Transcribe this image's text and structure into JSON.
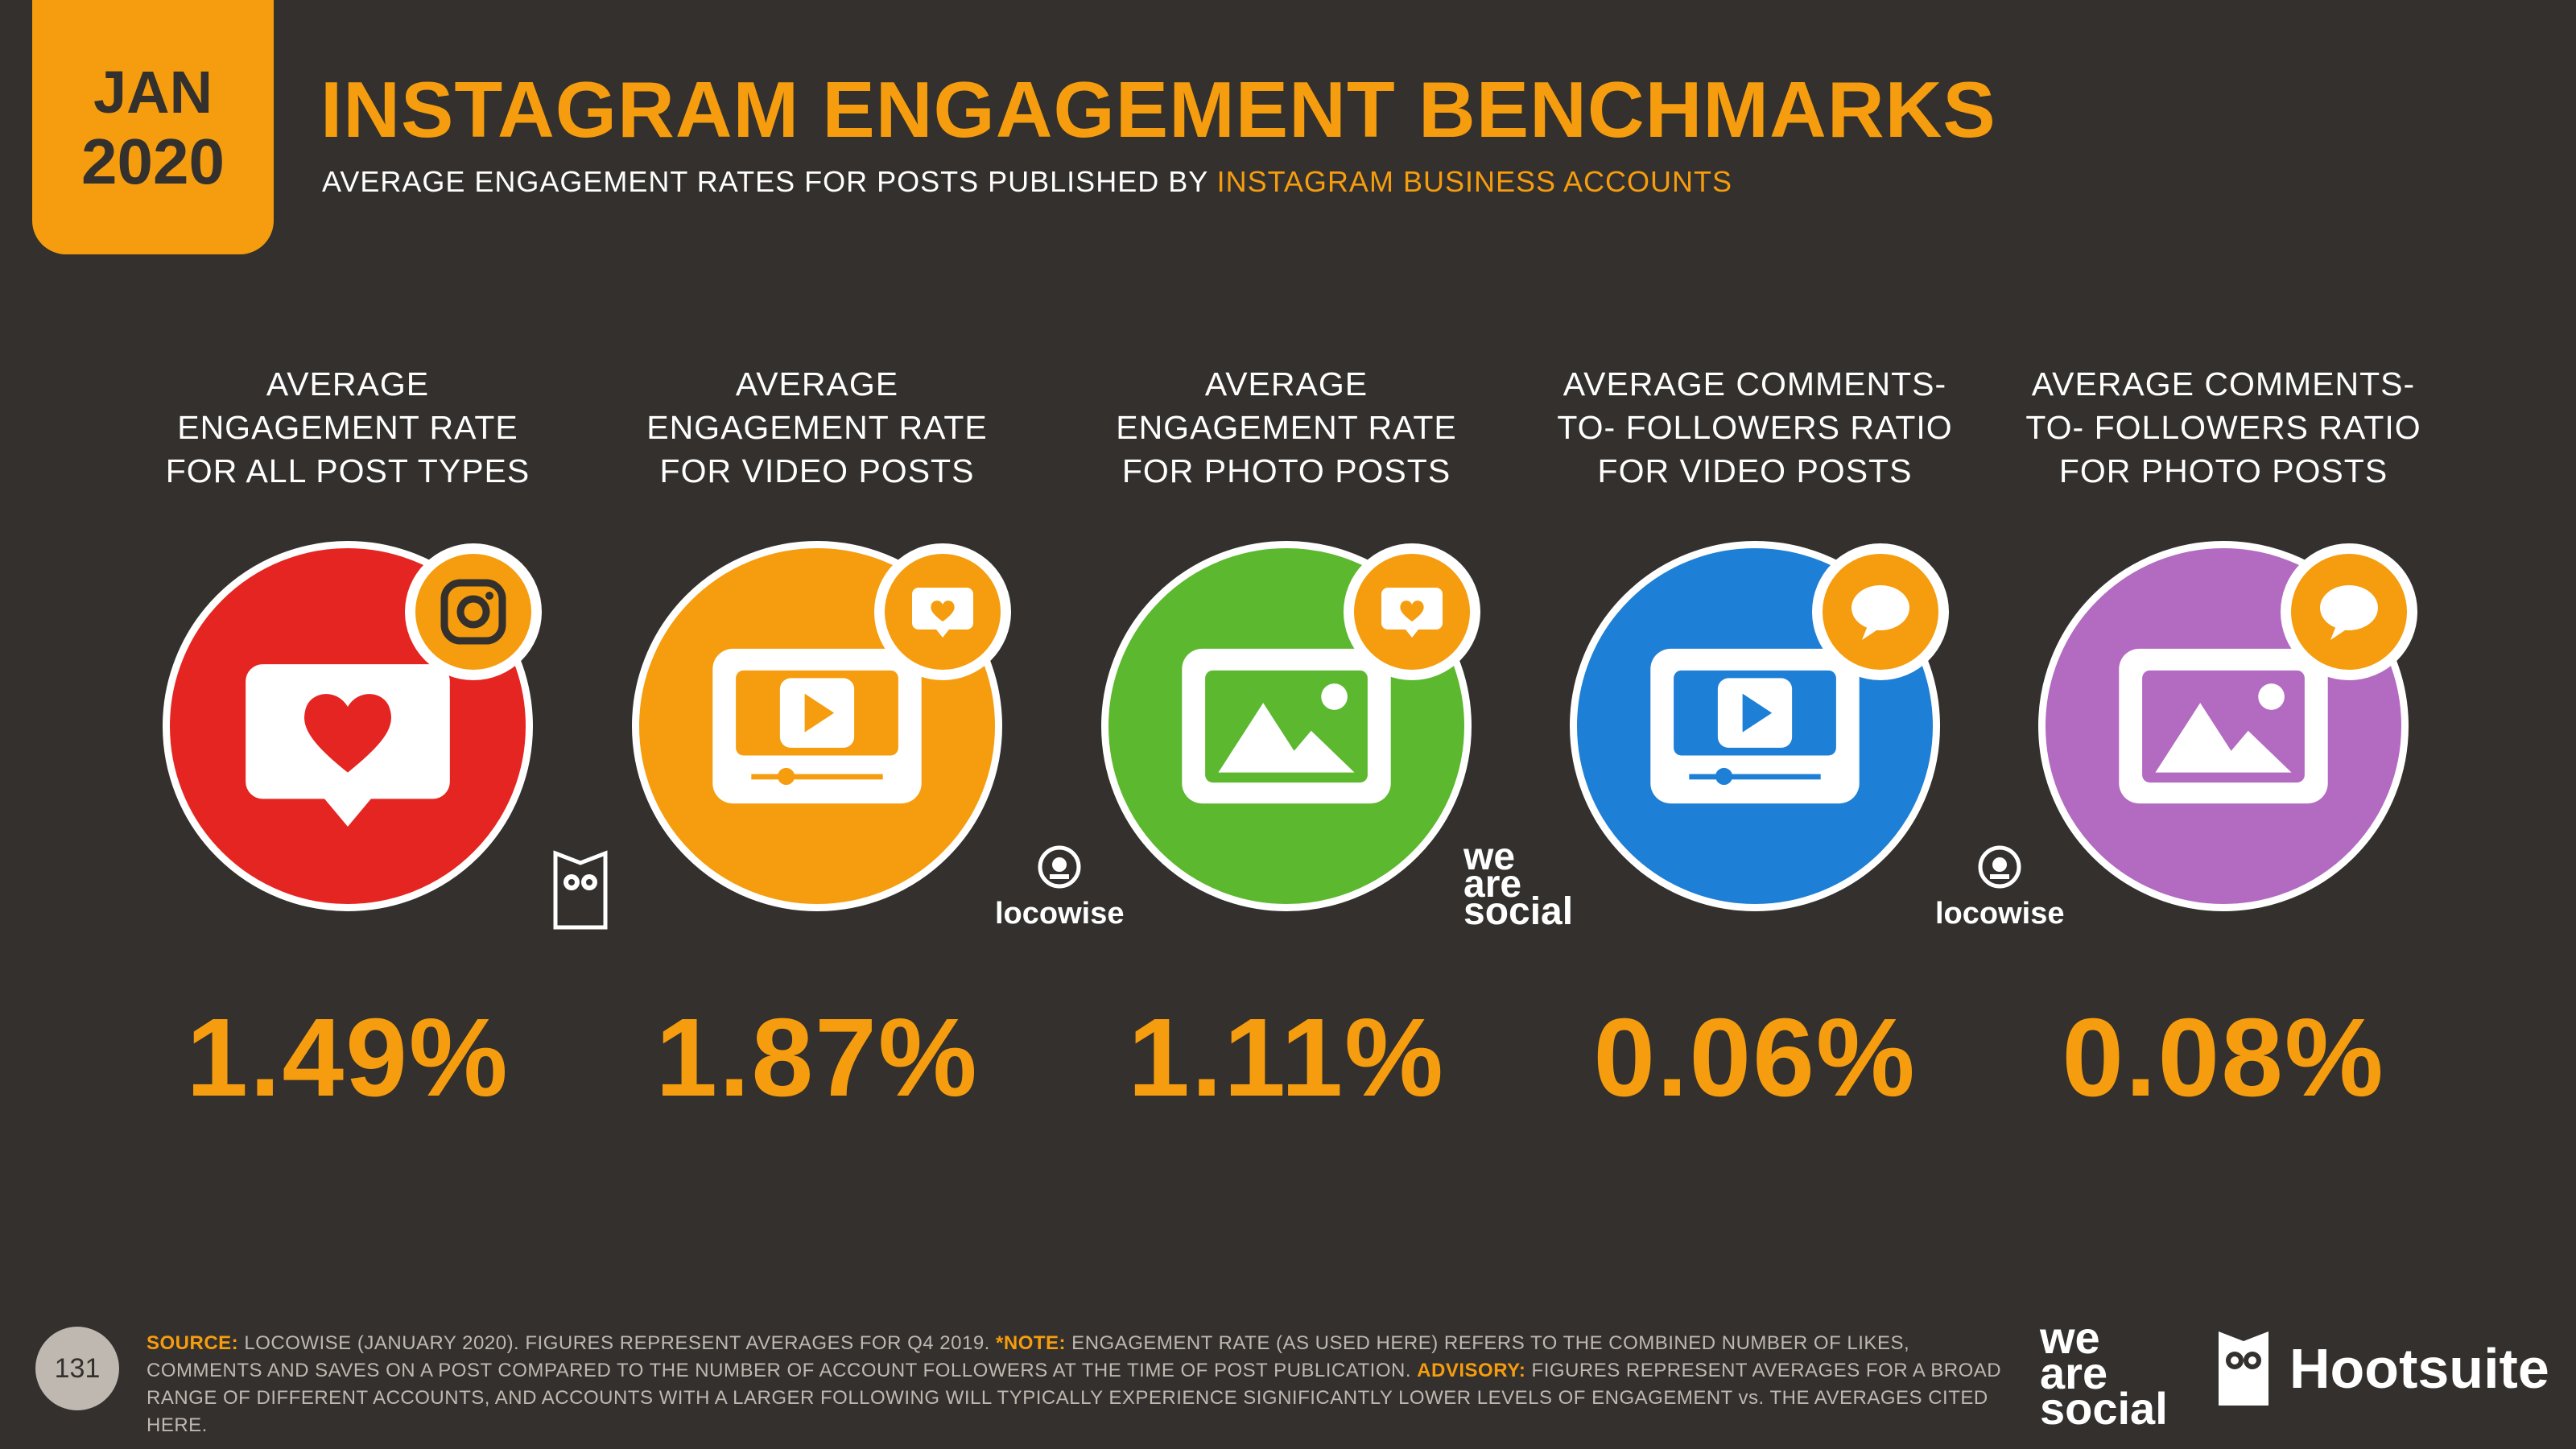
{
  "header": {
    "date_month": "JAN",
    "date_year": "2020",
    "title": "INSTAGRAM ENGAGEMENT BENCHMARKS",
    "subtitle_prefix": "AVERAGE ENGAGEMENT RATES FOR POSTS PUBLISHED BY ",
    "subtitle_highlight": "INSTAGRAM BUSINESS ACCOUNTS"
  },
  "metrics": [
    {
      "line1": "AVERAGE",
      "line2": "ENGAGEMENT RATE",
      "line3": "FOR ALL POST TYPES",
      "value": "1.49%",
      "color": "#e52521",
      "icon": "heart-speech-bubble-icon",
      "badge_icon": "instagram-icon"
    },
    {
      "line1": "AVERAGE",
      "line2": "ENGAGEMENT RATE",
      "line3": "FOR VIDEO POSTS",
      "value": "1.87%",
      "color": "#f59d0e",
      "icon": "video-player-icon",
      "badge_icon": "heart-bubble-icon"
    },
    {
      "line1": "AVERAGE",
      "line2": "ENGAGEMENT RATE",
      "line3": "FOR PHOTO POSTS",
      "value": "1.11%",
      "color": "#5cb82f",
      "icon": "photo-icon",
      "badge_icon": "heart-bubble-icon"
    },
    {
      "line1": "AVERAGE COMMENTS-",
      "line2": "TO- FOLLOWERS RATIO",
      "line3": "FOR VIDEO POSTS",
      "value": "0.06%",
      "color": "#1e7fd6",
      "icon": "video-player-icon",
      "badge_icon": "speech-bubble-icon"
    },
    {
      "line1": "AVERAGE COMMENTS-",
      "line2": "TO- FOLLOWERS RATIO",
      "line3": "FOR PHOTO POSTS",
      "value": "0.08%",
      "color": "#b36ac1",
      "icon": "photo-icon",
      "badge_icon": "speech-bubble-icon"
    }
  ],
  "source_logos": {
    "locowise_1": "locowise",
    "we_are_social_1": "we",
    "we_are_social_2": "are",
    "we_are_social_3": "social",
    "locowise_2": "locowise"
  },
  "footer": {
    "source_key": "SOURCE:",
    "source_text": " LOCOWISE (JANUARY 2020). FIGURES REPRESENT AVERAGES FOR Q4 2019. ",
    "note_key": "*NOTE:",
    "note_text": " ENGAGEMENT RATE (AS USED HERE) REFERS TO THE COMBINED NUMBER OF LIKES, COMMENTS AND SAVES ON A POST COMPARED TO THE NUMBER OF ACCOUNT FOLLOWERS AT THE TIME OF POST PUBLICATION. ",
    "advisory_key": "ADVISORY:",
    "advisory_text": " FIGURES REPRESENT AVERAGES FOR A BROAD RANGE OF DIFFERENT ACCOUNTS, AND ACCOUNTS WITH A LARGER FOLLOWING WILL TYPICALLY EXPERIENCE SIGNIFICANTLY LOWER LEVELS OF ENGAGEMENT vs. THE AVERAGES CITED HERE.",
    "page_number": "131",
    "was_1": "we",
    "was_2": "are",
    "was_3": "social",
    "hootsuite": "Hootsuite"
  },
  "colors": {
    "background": "#33302d",
    "accent": "#f59d0e"
  }
}
